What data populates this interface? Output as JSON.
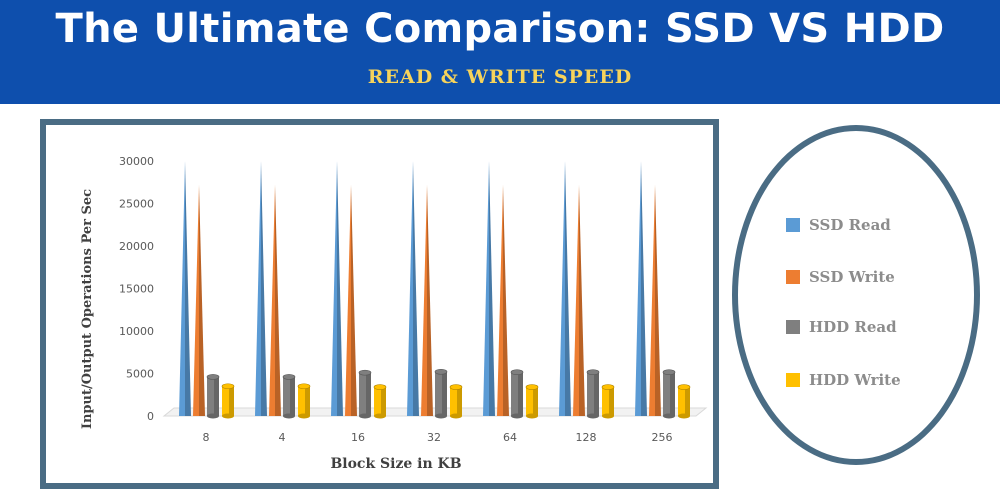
{
  "header": {
    "title": "The Ultimate Comparison: SSD VS HDD",
    "subtitle": "READ & WRITE SPEED"
  },
  "colors": {
    "header_bg": "#0e4fad",
    "subtitle": "#f6d35b",
    "frame": "#4a6c84"
  },
  "chart_data": {
    "type": "bar",
    "style": "3d-cone",
    "categories": [
      "8",
      "4",
      "16",
      "32",
      "64",
      "128",
      "256"
    ],
    "series": [
      {
        "name": "SSD Read",
        "color": "#5b9bd5",
        "values": [
          30000,
          30000,
          30000,
          30000,
          30000,
          30000,
          30000
        ]
      },
      {
        "name": "SSD Write",
        "color": "#ed7d31",
        "values": [
          27200,
          27200,
          27200,
          27200,
          27200,
          27200,
          27200
        ]
      },
      {
        "name": "HDD Read",
        "color": "#7f7f7f",
        "values": [
          4600,
          4600,
          5100,
          5200,
          5150,
          5150,
          5150
        ]
      },
      {
        "name": "HDD Write",
        "color": "#ffc000",
        "values": [
          3500,
          3500,
          3400,
          3400,
          3400,
          3400,
          3400
        ]
      }
    ],
    "xlabel": "Block Size in KB",
    "ylabel": "Input/Output Operations Per Sec",
    "ylim": [
      0,
      30000
    ],
    "yticks": [
      0,
      5000,
      10000,
      15000,
      20000,
      25000,
      30000
    ],
    "grid": false,
    "legend": "right"
  }
}
